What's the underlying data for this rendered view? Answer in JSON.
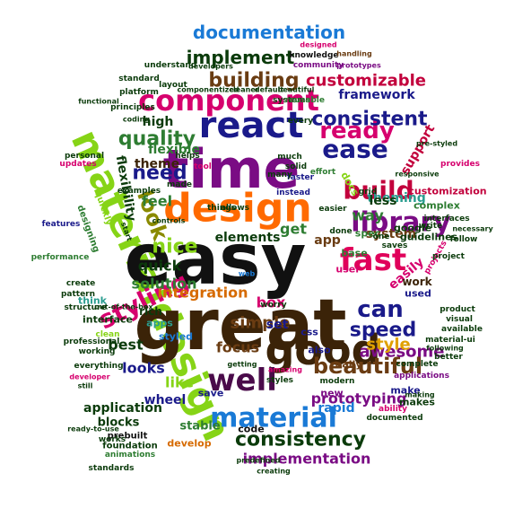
{
  "words": [
    {
      "text": "easy",
      "color": "#111111"
    },
    {
      "text": "great",
      "color": "#3b2308"
    },
    {
      "text": "time",
      "color": "#7a0c84"
    },
    {
      "text": "design",
      "color": "#ff6a00"
    },
    {
      "text": "materialdesign",
      "color": "#86d416"
    },
    {
      "text": "material design",
      "color": "#86d416"
    },
    {
      "text": "good",
      "color": "#3b2308"
    },
    {
      "text": "well",
      "color": "#4a0b4a"
    },
    {
      "text": "react",
      "color": "#1a1a8a"
    },
    {
      "text": "component",
      "color": "#d6006e"
    },
    {
      "text": "fast",
      "color": "#e0005a"
    },
    {
      "text": "library",
      "color": "#7a0c84"
    },
    {
      "text": "build",
      "color": "#c2003c"
    },
    {
      "text": "ease",
      "color": "#1a1a8a"
    },
    {
      "text": "ready",
      "color": "#d6006e"
    },
    {
      "text": "material",
      "color": "#1a7ad6"
    },
    {
      "text": "styling",
      "color": "#d6006e"
    },
    {
      "text": "beautiful",
      "color": "#6a3c12"
    },
    {
      "text": "consistency",
      "color": "#0b3b0b"
    },
    {
      "text": "quality",
      "color": "#2e7d32"
    },
    {
      "text": "can",
      "color": "#1a1a8a"
    },
    {
      "text": "speed",
      "color": "#1a1a8a"
    },
    {
      "text": "consistent",
      "color": "#1a1a8a"
    },
    {
      "text": "building",
      "color": "#6a3c12"
    },
    {
      "text": "implement",
      "color": "#0b3b0b"
    },
    {
      "text": "customizable",
      "color": "#c2003c"
    },
    {
      "text": "documentation",
      "color": "#1a7ad6"
    },
    {
      "text": "implementation",
      "color": "#7a0c84"
    },
    {
      "text": "look",
      "color": "#8a8a00"
    },
    {
      "text": "nice",
      "color": "#86d416"
    },
    {
      "text": "need",
      "color": "#1a1a8a"
    },
    {
      "text": "awesome",
      "color": "#7a0c84"
    },
    {
      "text": "simple",
      "color": "#6a3c12"
    },
    {
      "text": "style",
      "color": "#e0a000"
    },
    {
      "text": "focus",
      "color": "#6a3c12"
    },
    {
      "text": "prototyping",
      "color": "#7a0c84"
    },
    {
      "text": "integration",
      "color": "#d66a00"
    },
    {
      "text": "solution",
      "color": "#2e7d32"
    },
    {
      "text": "quick",
      "color": "#0b3b0b"
    },
    {
      "text": "best",
      "color": "#0b3b0b"
    },
    {
      "text": "looks",
      "color": "#1a1a8a"
    },
    {
      "text": "like",
      "color": "#86d416"
    },
    {
      "text": "flexibility",
      "color": "#0b3b0b"
    },
    {
      "text": "feel",
      "color": "#2e7d32"
    },
    {
      "text": "theme",
      "color": "#3b2308"
    },
    {
      "text": "high",
      "color": "#0b3b0b"
    },
    {
      "text": "flexible",
      "color": "#2e7d32"
    },
    {
      "text": "theming",
      "color": "#2a9d8f"
    },
    {
      "text": "way",
      "color": "#2e7d32"
    },
    {
      "text": "system",
      "color": "#6a3c12"
    },
    {
      "text": "elements",
      "color": "#0b3b0b"
    },
    {
      "text": "get",
      "color": "#2e7d32"
    },
    {
      "text": "box",
      "color": "#d6006e"
    },
    {
      "text": "set",
      "color": "#1a1a8a"
    },
    {
      "text": "app",
      "color": "#6a3c12"
    },
    {
      "text": "easily",
      "color": "#d6006e"
    },
    {
      "text": "support",
      "color": "#c2003c"
    },
    {
      "text": "less",
      "color": "#0b3b0b"
    },
    {
      "text": "rapid",
      "color": "#1a7ad6"
    },
    {
      "text": "application",
      "color": "#0b3b0b"
    },
    {
      "text": "wheel",
      "color": "#1a1a8a"
    },
    {
      "text": "framework",
      "color": "#1a1a8a"
    },
    {
      "text": "blocks",
      "color": "#0b3b0b"
    },
    {
      "text": "stable",
      "color": "#2e7d32"
    },
    {
      "text": "code",
      "color": "#111111"
    },
    {
      "text": "make",
      "color": "#1a1a8a"
    },
    {
      "text": "makes",
      "color": "#0b3b0b"
    },
    {
      "text": "save",
      "color": "#1a1a8a"
    },
    {
      "text": "new",
      "color": "#7a0c84"
    },
    {
      "text": "css",
      "color": "#1a1a8a"
    },
    {
      "text": "also",
      "color": "#1a1a8a"
    },
    {
      "text": "really",
      "color": "#6a3c12"
    },
    {
      "text": "used",
      "color": "#1a1a8a"
    },
    {
      "text": "work",
      "color": "#3b2308"
    },
    {
      "text": "google",
      "color": "#0b3b0b"
    },
    {
      "text": "guidelines",
      "color": "#0b3b0b"
    },
    {
      "text": "customization",
      "color": "#c2003c"
    },
    {
      "text": "complex",
      "color": "#2e7d32"
    },
    {
      "text": "spec",
      "color": "#2e7d32"
    },
    {
      "text": "base",
      "color": "#2e7d32"
    },
    {
      "text": "user",
      "color": "#d6006e"
    },
    {
      "text": "rich",
      "color": "#0b3b0b"
    },
    {
      "text": "apps",
      "color": "#2a9d8f"
    },
    {
      "text": "styled",
      "color": "#1a7ad6"
    },
    {
      "text": "think",
      "color": "#2a9d8f"
    },
    {
      "text": "interface",
      "color": "#0b3b0b"
    },
    {
      "text": "develop",
      "color": "#d66a00"
    },
    {
      "text": "prebuilt",
      "color": "#111111"
    },
    {
      "text": "foundation",
      "color": "#0b3b0b"
    },
    {
      "text": "everything",
      "color": "#0b3b0b"
    },
    {
      "text": "working",
      "color": "#0b3b0b"
    },
    {
      "text": "professional",
      "color": "#0b3b0b"
    },
    {
      "text": "structure",
      "color": "#0b3b0b"
    },
    {
      "text": "pattern",
      "color": "#0b3b0b"
    },
    {
      "text": "create",
      "color": "#0b3b0b"
    },
    {
      "text": "performance",
      "color": "#2e7d32"
    },
    {
      "text": "designing",
      "color": "#2e7d32"
    },
    {
      "text": "quickly",
      "color": "#86d416"
    },
    {
      "text": "features",
      "color": "#1a1a8a"
    },
    {
      "text": "updates",
      "color": "#d6006e"
    },
    {
      "text": "personal",
      "color": "#0b3b0b"
    },
    {
      "text": "platform",
      "color": "#0b3b0b"
    },
    {
      "text": "principles",
      "color": "#0b3b0b"
    },
    {
      "text": "coding",
      "color": "#0b3b0b"
    },
    {
      "text": "standard",
      "color": "#0b3b0b"
    },
    {
      "text": "layout",
      "color": "#0b3b0b"
    },
    {
      "text": "understand",
      "color": "#0b3b0b"
    },
    {
      "text": "community",
      "color": "#7a0c84"
    },
    {
      "text": "knowledge",
      "color": "#111111"
    },
    {
      "text": "prototypes",
      "color": "#7a0c84"
    },
    {
      "text": "developers",
      "color": "#0b3b0b"
    },
    {
      "text": "designed",
      "color": "#d6006e"
    },
    {
      "text": "handling",
      "color": "#6a3c12"
    },
    {
      "text": "systems",
      "color": "#0b3b0b"
    },
    {
      "text": "every",
      "color": "#0b3b0b"
    },
    {
      "text": "effort",
      "color": "#2e7d32"
    },
    {
      "text": "docs",
      "color": "#86d416"
    },
    {
      "text": "reusable",
      "color": "#2e7d32"
    },
    {
      "text": "grid",
      "color": "#0b3b0b"
    },
    {
      "text": "one",
      "color": "#0b3b0b"
    },
    {
      "text": "saves",
      "color": "#0b3b0b"
    },
    {
      "text": "write",
      "color": "#0b3b0b"
    },
    {
      "text": "easier",
      "color": "#0b3b0b"
    },
    {
      "text": "faster",
      "color": "#1a1a8a"
    },
    {
      "text": "much",
      "color": "#0b3b0b"
    },
    {
      "text": "solid",
      "color": "#0b3b0b"
    },
    {
      "text": "many",
      "color": "#0b3b0b"
    },
    {
      "text": "helps",
      "color": "#0b3b0b"
    },
    {
      "text": "tool",
      "color": "#d6006e"
    },
    {
      "text": "examples",
      "color": "#0b3b0b"
    },
    {
      "text": "made",
      "color": "#0b3b0b"
    },
    {
      "text": "things",
      "color": "#0b3b0b"
    },
    {
      "text": "allows",
      "color": "#0b3b0b"
    },
    {
      "text": "instead",
      "color": "#1a1a8a"
    },
    {
      "text": "start",
      "color": "#0b3b0b"
    },
    {
      "text": "controls",
      "color": "#0b3b0b"
    },
    {
      "text": "interfaces",
      "color": "#0b3b0b"
    },
    {
      "text": "projects",
      "color": "#d6006e"
    },
    {
      "text": "provides",
      "color": "#d6006e"
    },
    {
      "text": "necessary",
      "color": "#0b3b0b"
    },
    {
      "text": "follow",
      "color": "#0b3b0b"
    },
    {
      "text": "project",
      "color": "#0b3b0b"
    },
    {
      "text": "product",
      "color": "#0b3b0b"
    },
    {
      "text": "visual",
      "color": "#0b3b0b"
    },
    {
      "text": "available",
      "color": "#0b3b0b"
    },
    {
      "text": "material-ui",
      "color": "#0b3b0b"
    },
    {
      "text": "better",
      "color": "#0b3b0b"
    },
    {
      "text": "complete",
      "color": "#0b3b0b"
    },
    {
      "text": "applications",
      "color": "#7a0c84"
    },
    {
      "text": "documented",
      "color": "#0b3b0b"
    },
    {
      "text": "ability",
      "color": "#d6006e"
    },
    {
      "text": "styles",
      "color": "#0b3b0b"
    },
    {
      "text": "modern",
      "color": "#0b3b0b"
    },
    {
      "text": "animations",
      "color": "#2e7d32"
    },
    {
      "text": "works",
      "color": "#0b3b0b"
    },
    {
      "text": "standards",
      "color": "#0b3b0b"
    },
    {
      "text": "ready-to-use",
      "color": "#0b3b0b"
    },
    {
      "text": "developer",
      "color": "#d6006e"
    },
    {
      "text": "still",
      "color": "#0b3b0b"
    },
    {
      "text": "worry",
      "color": "#0b3b0b"
    },
    {
      "text": "clean",
      "color": "#86d416"
    },
    {
      "text": "web",
      "color": "#1a7ad6"
    },
    {
      "text": "done",
      "color": "#0b3b0b"
    },
    {
      "text": "predefined",
      "color": "#0b3b0b"
    },
    {
      "text": "creating",
      "color": "#0b3b0b"
    },
    {
      "text": "out-of-the-box",
      "color": "#0b3b0b"
    },
    {
      "text": "componentized",
      "color": "#0b3b0b"
    },
    {
      "text": "cleaner",
      "color": "#0b3b0b"
    },
    {
      "text": "default",
      "color": "#0b3b0b"
    },
    {
      "text": "beautiful",
      "color": "#0b3b0b"
    },
    {
      "text": "responsive",
      "color": "#0b3b0b"
    },
    {
      "text": "pre-styled",
      "color": "#0b3b0b"
    },
    {
      "text": "functional",
      "color": "#0b3b0b"
    },
    {
      "text": "amazing",
      "color": "#d6006e"
    },
    {
      "text": "making",
      "color": "#0b3b0b"
    },
    {
      "text": "following",
      "color": "#0b3b0b"
    },
    {
      "text": "getting",
      "color": "#0b3b0b"
    }
  ]
}
